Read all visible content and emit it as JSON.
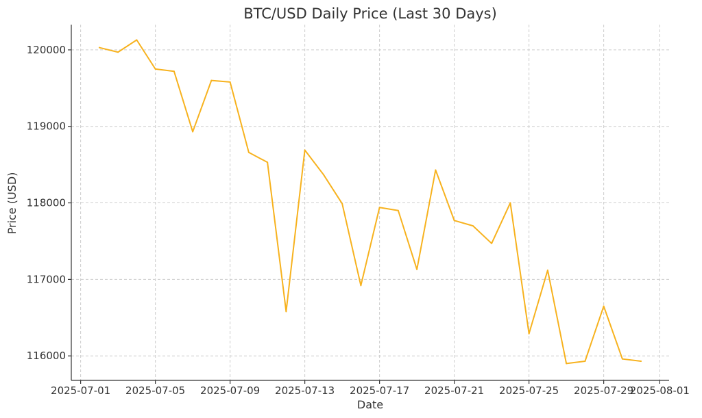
{
  "chart_data": {
    "type": "line",
    "title": "BTC/USD Daily Price (Last 30 Days)",
    "xlabel": "Date",
    "ylabel": "Price (USD)",
    "xlim": [
      "2025-06-30T12:00",
      "2025-08-01T12:00"
    ],
    "ylim": [
      115680,
      120330
    ],
    "grid": true,
    "x_ticks": [
      "2025-07-01",
      "2025-07-05",
      "2025-07-09",
      "2025-07-13",
      "2025-07-17",
      "2025-07-21",
      "2025-07-25",
      "2025-07-29",
      "2025-08-01"
    ],
    "y_ticks": [
      116000,
      117000,
      118000,
      119000,
      120000
    ],
    "line_color": "#F7B21E",
    "series": [
      {
        "points": [
          {
            "x": "2025-07-02",
            "y": 120030
          },
          {
            "x": "2025-07-03",
            "y": 119970
          },
          {
            "x": "2025-07-04",
            "y": 120130
          },
          {
            "x": "2025-07-05",
            "y": 119750
          },
          {
            "x": "2025-07-06",
            "y": 119720
          },
          {
            "x": "2025-07-07",
            "y": 118930
          },
          {
            "x": "2025-07-08",
            "y": 119600
          },
          {
            "x": "2025-07-09",
            "y": 119580
          },
          {
            "x": "2025-07-10",
            "y": 118660
          },
          {
            "x": "2025-07-11",
            "y": 118530
          },
          {
            "x": "2025-07-12",
            "y": 116580
          },
          {
            "x": "2025-07-13",
            "y": 118690
          },
          {
            "x": "2025-07-14",
            "y": 118370
          },
          {
            "x": "2025-07-15",
            "y": 117990
          },
          {
            "x": "2025-07-16",
            "y": 116920
          },
          {
            "x": "2025-07-17",
            "y": 117940
          },
          {
            "x": "2025-07-18",
            "y": 117900
          },
          {
            "x": "2025-07-19",
            "y": 117130
          },
          {
            "x": "2025-07-20",
            "y": 118430
          },
          {
            "x": "2025-07-21",
            "y": 117770
          },
          {
            "x": "2025-07-22",
            "y": 117700
          },
          {
            "x": "2025-07-23",
            "y": 117470
          },
          {
            "x": "2025-07-24",
            "y": 118000
          },
          {
            "x": "2025-07-25",
            "y": 116290
          },
          {
            "x": "2025-07-26",
            "y": 117120
          },
          {
            "x": "2025-07-27",
            "y": 115900
          },
          {
            "x": "2025-07-28",
            "y": 115930
          },
          {
            "x": "2025-07-29",
            "y": 116650
          },
          {
            "x": "2025-07-30",
            "y": 115960
          },
          {
            "x": "2025-07-31",
            "y": 115930
          }
        ]
      }
    ]
  }
}
